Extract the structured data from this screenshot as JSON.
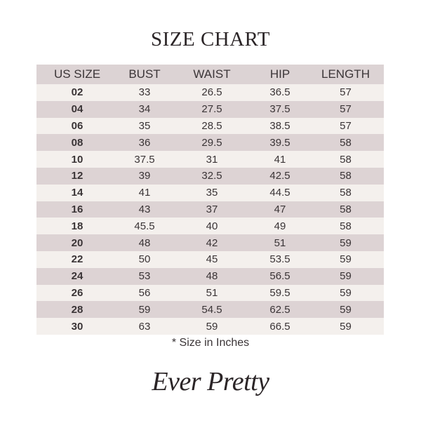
{
  "title": "SIZE CHART",
  "headers": [
    "US SIZE",
    "BUST",
    "WAIST",
    "HIP",
    "LENGTH"
  ],
  "rows": [
    [
      "02",
      "33",
      "26.5",
      "36.5",
      "57"
    ],
    [
      "04",
      "34",
      "27.5",
      "37.5",
      "57"
    ],
    [
      "06",
      "35",
      "28.5",
      "38.5",
      "57"
    ],
    [
      "08",
      "36",
      "29.5",
      "39.5",
      "58"
    ],
    [
      "10",
      "37.5",
      "31",
      "41",
      "58"
    ],
    [
      "12",
      "39",
      "32.5",
      "42.5",
      "58"
    ],
    [
      "14",
      "41",
      "35",
      "44.5",
      "58"
    ],
    [
      "16",
      "43",
      "37",
      "47",
      "58"
    ],
    [
      "18",
      "45.5",
      "40",
      "49",
      "58"
    ],
    [
      "20",
      "48",
      "42",
      "51",
      "59"
    ],
    [
      "22",
      "50",
      "45",
      "53.5",
      "59"
    ],
    [
      "24",
      "53",
      "48",
      "56.5",
      "59"
    ],
    [
      "26",
      "56",
      "51",
      "59.5",
      "59"
    ],
    [
      "28",
      "59",
      "54.5",
      "62.5",
      "59"
    ],
    [
      "30",
      "63",
      "59",
      "66.5",
      "59"
    ]
  ],
  "note": "* Size in Inches",
  "logo": "Ever Pretty",
  "colors": {
    "header": "#dcd3d4",
    "row_dark": "#ddd3d4",
    "row_light": "#f4f0ed"
  }
}
